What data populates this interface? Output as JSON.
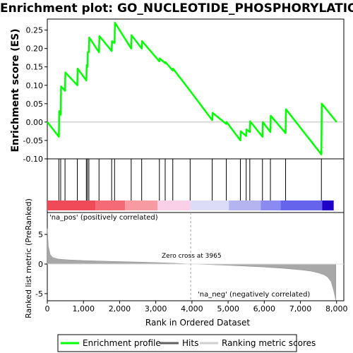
{
  "title": "Enrichment plot: GO_NUCLEOTIDE_PHOSPHORYLATION",
  "colors": {
    "enrichment_line": "#00ff00",
    "hits": "#000000",
    "metric_fill": "#a8a8a8",
    "pos_label": "#e8404a",
    "neg_label": "#2020c0",
    "zero_line": "#b8b8b8"
  },
  "chart_data": [
    {
      "type": "line",
      "name": "enrichment-panel",
      "ylabel": "Enrichment score (ES)",
      "xlim": [
        0,
        8200
      ],
      "ylim": [
        -0.1,
        0.28
      ],
      "yticks": [
        -0.1,
        -0.05,
        0.0,
        0.05,
        0.1,
        0.15,
        0.2,
        0.25
      ],
      "ytick_labels": [
        "-0.10",
        "-0.05",
        "0.00",
        "0.05",
        "0.10",
        "0.15",
        "0.20",
        "0.25"
      ],
      "grid": false,
      "series": [
        {
          "name": "Enrichment profile",
          "x": [
            0,
            320,
            330,
            370,
            380,
            490,
            500,
            830,
            840,
            1080,
            1090,
            1110,
            1120,
            1150,
            1160,
            1430,
            1440,
            1780,
            1790,
            1860,
            1870,
            2320,
            2330,
            2610,
            2620,
            3100,
            3110,
            3260,
            3270,
            3470,
            3480,
            3950,
            4560,
            4570,
            4950,
            4960,
            5340,
            5350,
            5500,
            5510,
            5600,
            5610,
            5950,
            5960,
            6170,
            6180,
            6590,
            6600,
            7580,
            7590,
            8000
          ],
          "y": [
            0.0,
            -0.04,
            0.03,
            0.02,
            0.097,
            0.085,
            0.135,
            0.1,
            0.145,
            0.113,
            0.155,
            0.15,
            0.19,
            0.19,
            0.23,
            0.19,
            0.234,
            0.193,
            0.22,
            0.215,
            0.27,
            0.2,
            0.236,
            0.2,
            0.22,
            0.165,
            0.173,
            0.16,
            0.163,
            0.14,
            0.145,
            0.085,
            0.005,
            0.025,
            -0.005,
            0.0,
            -0.05,
            -0.025,
            -0.038,
            -0.02,
            -0.027,
            0.002,
            -0.04,
            0.0,
            -0.027,
            0.017,
            -0.03,
            0.035,
            -0.088,
            0.05,
            0.0
          ]
        }
      ]
    },
    {
      "type": "scatter",
      "name": "hits-panel",
      "legend_label": "Hits",
      "hit_positions": [
        320,
        370,
        490,
        830,
        1080,
        1110,
        1150,
        1430,
        1780,
        1860,
        2320,
        2610,
        3100,
        3260,
        3470,
        3950,
        4560,
        4950,
        5340,
        5500,
        5600,
        5950,
        6170,
        6590,
        7580
      ]
    },
    {
      "type": "area",
      "name": "metric-panel",
      "xlabel": "Rank in Ordered Dataset",
      "ylabel": "Ranked list metric (PreRanked)",
      "xlim": [
        0,
        8200
      ],
      "ylim": [
        -6.2,
        8.7
      ],
      "yticks": [
        -5,
        0,
        5
      ],
      "ytick_labels": [
        "-5",
        "0",
        "5"
      ],
      "xticks": [
        0,
        1000,
        2000,
        3000,
        4000,
        5000,
        6000,
        7000,
        8000
      ],
      "xtick_labels": [
        "0",
        "1,000",
        "2,000",
        "3,000",
        "4,000",
        "5,000",
        "6,000",
        "7,000",
        "8,000"
      ],
      "x": [
        0,
        30,
        80,
        150,
        300,
        600,
        1000,
        1500,
        2000,
        2500,
        3000,
        3500,
        3965,
        4500,
        5000,
        5500,
        6000,
        6500,
        7000,
        7300,
        7500,
        7650,
        7750,
        7850,
        7920,
        7980
      ],
      "values": [
        6.0,
        3.0,
        1.6,
        1.1,
        0.85,
        0.7,
        0.6,
        0.5,
        0.42,
        0.34,
        0.25,
        0.14,
        0.0,
        -0.1,
        -0.22,
        -0.36,
        -0.52,
        -0.72,
        -0.98,
        -1.2,
        -1.5,
        -1.8,
        -2.2,
        -3.0,
        -4.5,
        -6.1
      ],
      "zero_cross_label": "Zero cross at 3965",
      "zero_cross_x": 3965,
      "pos_label": "'na_pos' (positively correlated)",
      "neg_label": "'na_neg' (negatively correlated)"
    }
  ],
  "colorbar": {
    "segments": [
      {
        "end": 1330,
        "color": "#f04a58"
      },
      {
        "end": 2150,
        "color": "#f46a76"
      },
      {
        "end": 3050,
        "color": "#f89aa2"
      },
      {
        "end": 3965,
        "color": "#fad0e8"
      },
      {
        "end": 5020,
        "color": "#dcdcf8"
      },
      {
        "end": 5900,
        "color": "#b4b4f0"
      },
      {
        "end": 6450,
        "color": "#8a8af0"
      },
      {
        "end": 7600,
        "color": "#6464ec"
      },
      {
        "end": 7920,
        "color": "#1e00c8"
      }
    ]
  },
  "legend": {
    "items": [
      "Enrichment profile",
      "Hits",
      "Ranking metric scores"
    ],
    "colors": [
      "#00ff00",
      "#606060",
      "#d0d0d0"
    ]
  }
}
